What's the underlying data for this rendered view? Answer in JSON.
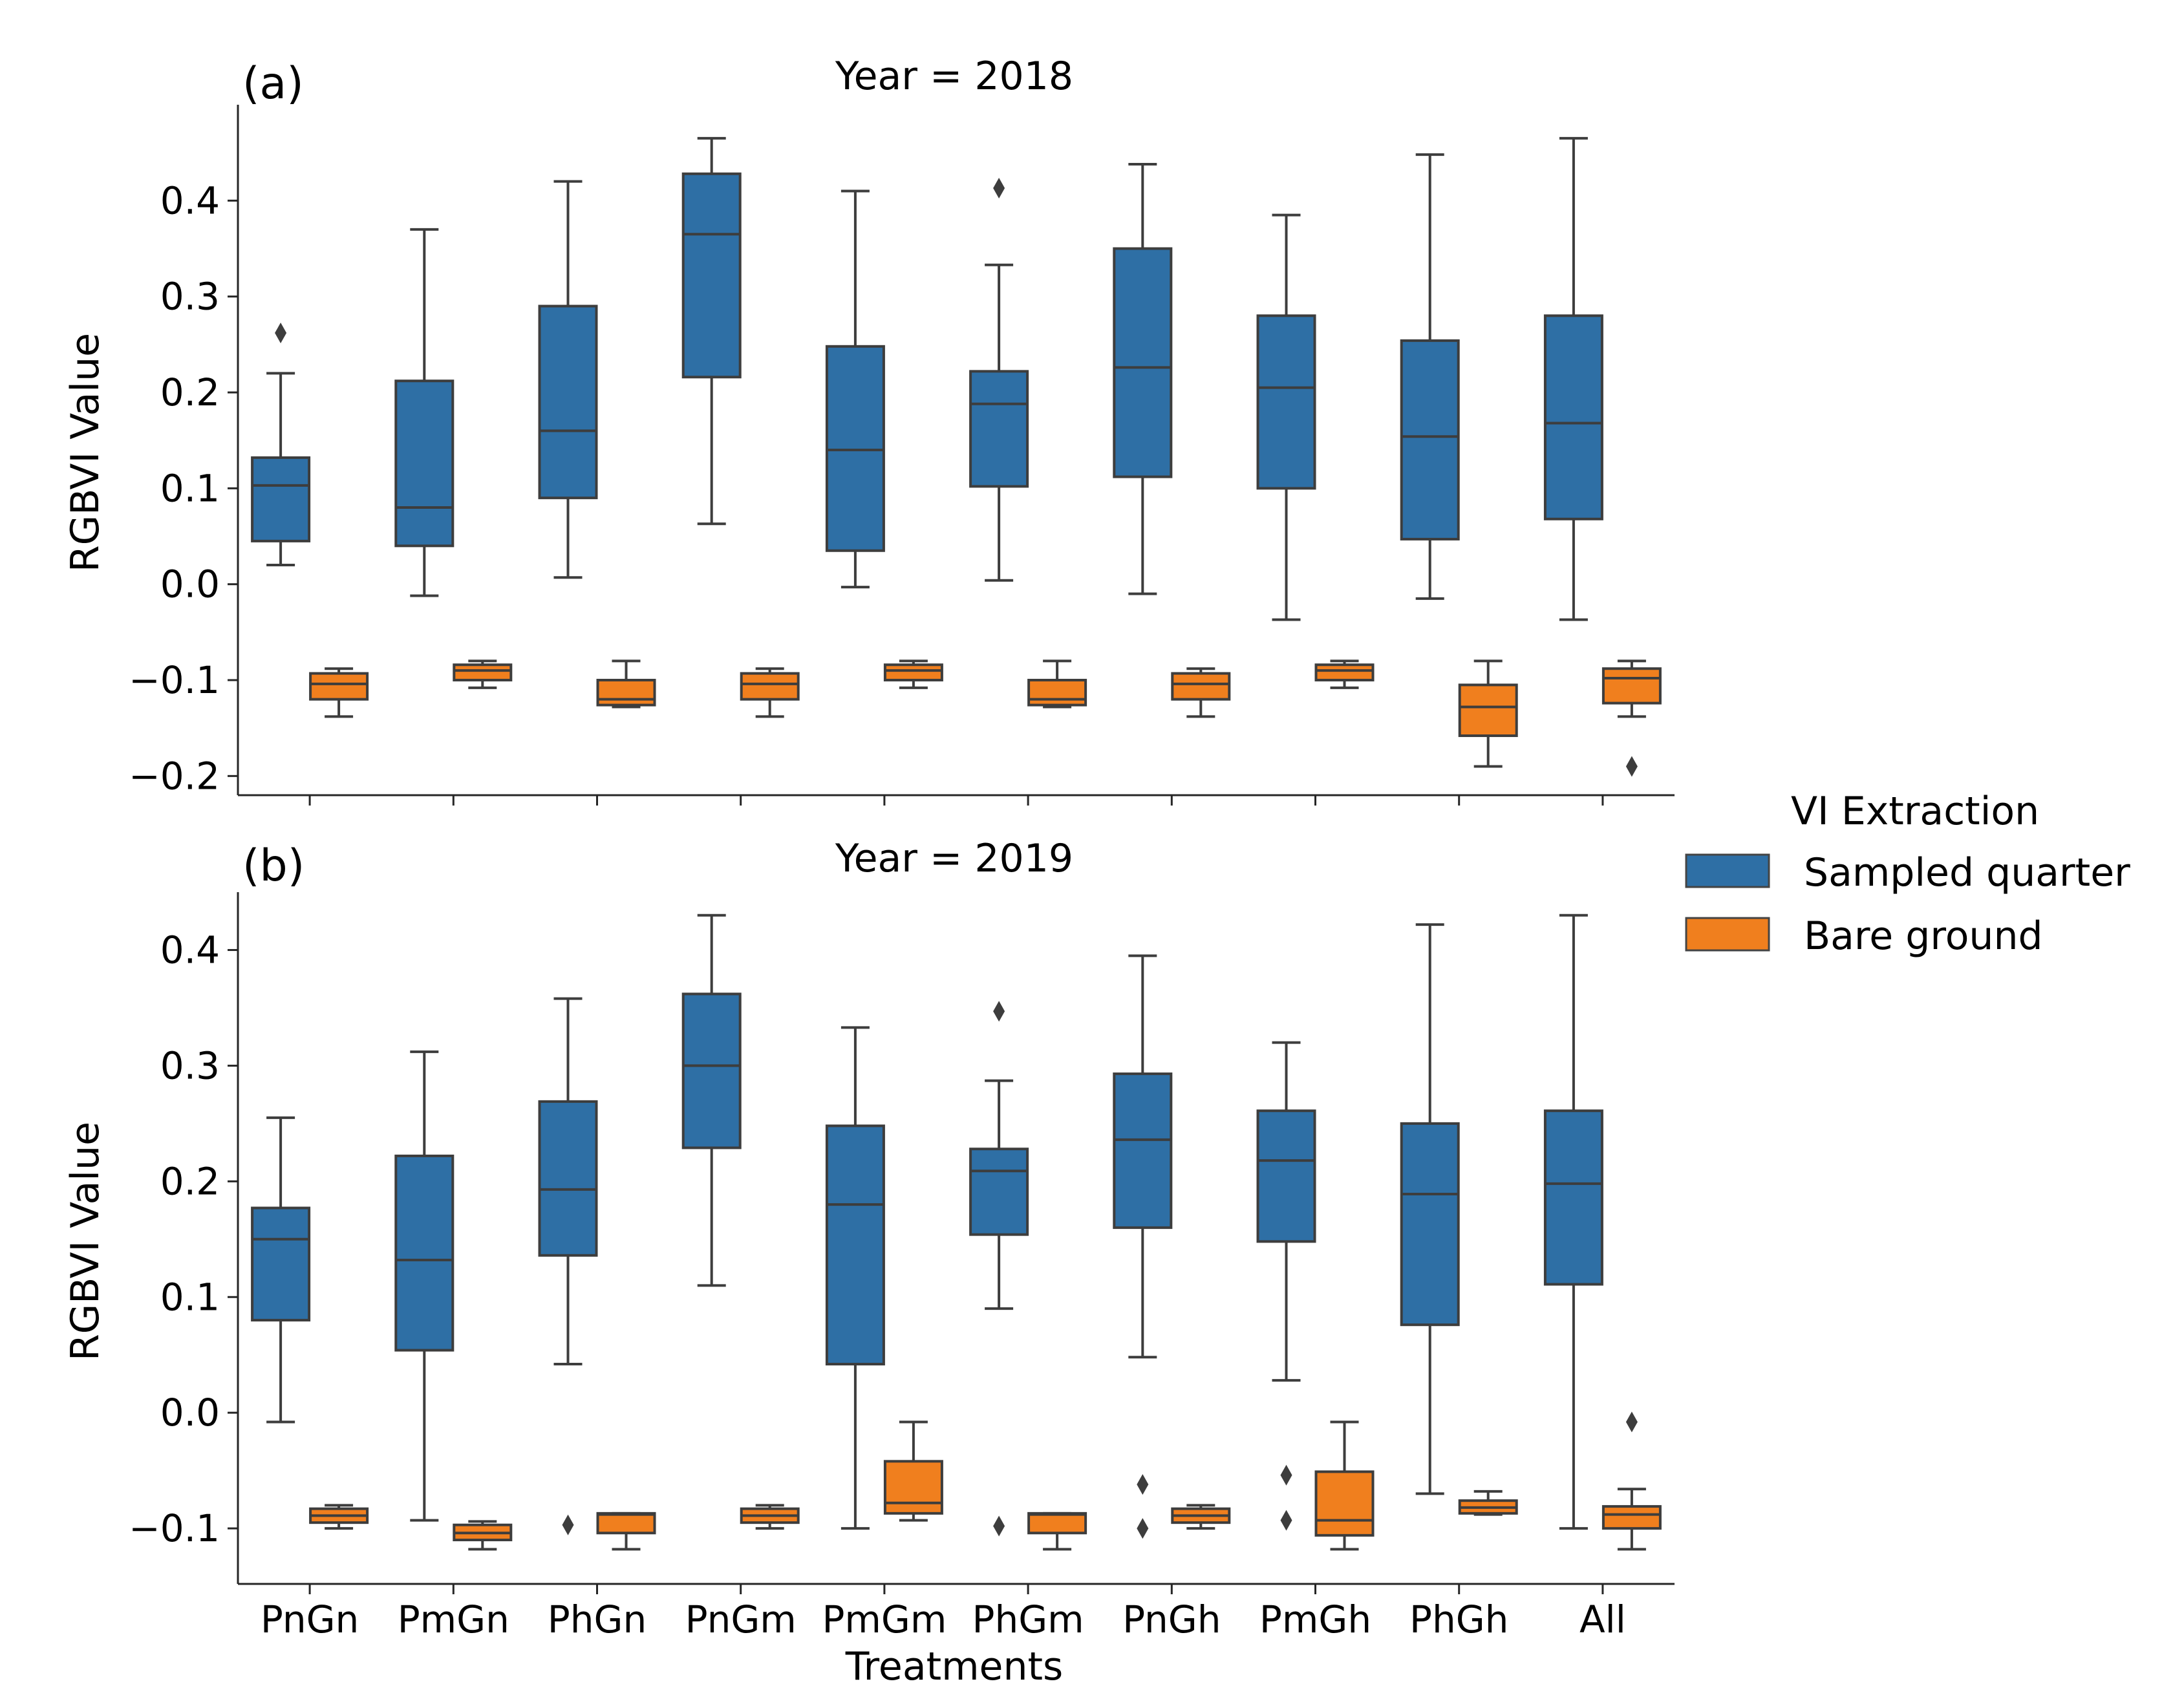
{
  "chart_data": {
    "type": "box",
    "xlabel": "Treatments",
    "categories": [
      "PnGn",
      "PmGn",
      "PhGn",
      "PnGm",
      "PmGm",
      "PhGm",
      "PnGh",
      "PmGh",
      "PhGh",
      "All"
    ],
    "legend": {
      "title": "VI Extraction",
      "placement": "right",
      "entries": [
        {
          "name": "Sampled quarter",
          "color": "#2e6fa5"
        },
        {
          "name": "Bare ground",
          "color": "#f07f1e"
        }
      ]
    },
    "panels": [
      {
        "label": "(a)",
        "title": "Year = 2018",
        "ylabel": "RGBVI Value",
        "ylim": [
          -0.22,
          0.5
        ],
        "yticks": [
          -0.2,
          -0.1,
          0.0,
          0.1,
          0.2,
          0.3,
          0.4
        ],
        "ytick_labels": [
          "−0.2",
          "−0.1",
          "0.0",
          "0.1",
          "0.2",
          "0.3",
          "0.4"
        ],
        "series": [
          {
            "name": "Sampled quarter",
            "boxes": [
              {
                "whislo": 0.02,
                "q1": 0.045,
                "med": 0.103,
                "q3": 0.132,
                "whishi": 0.22,
                "fliers": [
                  0.262
                ]
              },
              {
                "whislo": -0.012,
                "q1": 0.04,
                "med": 0.08,
                "q3": 0.212,
                "whishi": 0.37,
                "fliers": []
              },
              {
                "whislo": 0.007,
                "q1": 0.09,
                "med": 0.16,
                "q3": 0.29,
                "whishi": 0.42,
                "fliers": []
              },
              {
                "whislo": 0.063,
                "q1": 0.216,
                "med": 0.365,
                "q3": 0.428,
                "whishi": 0.465,
                "fliers": []
              },
              {
                "whislo": -0.003,
                "q1": 0.035,
                "med": 0.14,
                "q3": 0.248,
                "whishi": 0.41,
                "fliers": []
              },
              {
                "whislo": 0.004,
                "q1": 0.102,
                "med": 0.188,
                "q3": 0.222,
                "whishi": 0.333,
                "fliers": [
                  0.413
                ]
              },
              {
                "whislo": -0.01,
                "q1": 0.112,
                "med": 0.226,
                "q3": 0.35,
                "whishi": 0.438,
                "fliers": []
              },
              {
                "whislo": -0.037,
                "q1": 0.1,
                "med": 0.205,
                "q3": 0.28,
                "whishi": 0.385,
                "fliers": []
              },
              {
                "whislo": -0.015,
                "q1": 0.047,
                "med": 0.154,
                "q3": 0.254,
                "whishi": 0.448,
                "fliers": []
              },
              {
                "whislo": -0.037,
                "q1": 0.068,
                "med": 0.168,
                "q3": 0.28,
                "whishi": 0.465,
                "fliers": []
              }
            ]
          },
          {
            "name": "Bare ground",
            "boxes": [
              {
                "whislo": -0.138,
                "q1": -0.12,
                "med": -0.104,
                "q3": -0.093,
                "whishi": -0.088,
                "fliers": []
              },
              {
                "whislo": -0.108,
                "q1": -0.1,
                "med": -0.09,
                "q3": -0.084,
                "whishi": -0.08,
                "fliers": []
              },
              {
                "whislo": -0.128,
                "q1": -0.126,
                "med": -0.12,
                "q3": -0.1,
                "whishi": -0.08,
                "fliers": []
              },
              {
                "whislo": -0.138,
                "q1": -0.12,
                "med": -0.104,
                "q3": -0.093,
                "whishi": -0.088,
                "fliers": []
              },
              {
                "whislo": -0.108,
                "q1": -0.1,
                "med": -0.09,
                "q3": -0.084,
                "whishi": -0.08,
                "fliers": []
              },
              {
                "whislo": -0.128,
                "q1": -0.126,
                "med": -0.12,
                "q3": -0.1,
                "whishi": -0.08,
                "fliers": []
              },
              {
                "whislo": -0.138,
                "q1": -0.12,
                "med": -0.104,
                "q3": -0.093,
                "whishi": -0.088,
                "fliers": []
              },
              {
                "whislo": -0.108,
                "q1": -0.1,
                "med": -0.09,
                "q3": -0.084,
                "whishi": -0.08,
                "fliers": []
              },
              {
                "whislo": -0.19,
                "q1": -0.158,
                "med": -0.128,
                "q3": -0.105,
                "whishi": -0.08,
                "fliers": []
              },
              {
                "whislo": -0.138,
                "q1": -0.124,
                "med": -0.098,
                "q3": -0.088,
                "whishi": -0.08,
                "fliers": [
                  -0.19
                ]
              }
            ]
          }
        ]
      },
      {
        "label": "(b)",
        "title": "Year = 2019",
        "ylabel": "RGBVI Value",
        "ylim": [
          -0.148,
          0.45
        ],
        "yticks": [
          -0.1,
          0.0,
          0.1,
          0.2,
          0.3,
          0.4
        ],
        "ytick_labels": [
          "−0.1",
          "0.0",
          "0.1",
          "0.2",
          "0.3",
          "0.4"
        ],
        "series": [
          {
            "name": "Sampled quarter",
            "boxes": [
              {
                "whislo": -0.008,
                "q1": 0.08,
                "med": 0.15,
                "q3": 0.177,
                "whishi": 0.255,
                "fliers": []
              },
              {
                "whislo": -0.093,
                "q1": 0.054,
                "med": 0.132,
                "q3": 0.222,
                "whishi": 0.312,
                "fliers": []
              },
              {
                "whislo": 0.042,
                "q1": 0.136,
                "med": 0.193,
                "q3": 0.269,
                "whishi": 0.358,
                "fliers": [
                  -0.097
                ]
              },
              {
                "whislo": 0.11,
                "q1": 0.229,
                "med": 0.3,
                "q3": 0.362,
                "whishi": 0.43,
                "fliers": []
              },
              {
                "whislo": -0.1,
                "q1": 0.042,
                "med": 0.18,
                "q3": 0.248,
                "whishi": 0.333,
                "fliers": []
              },
              {
                "whislo": 0.09,
                "q1": 0.154,
                "med": 0.209,
                "q3": 0.228,
                "whishi": 0.287,
                "fliers": [
                  0.347,
                  -0.098
                ]
              },
              {
                "whislo": 0.048,
                "q1": 0.16,
                "med": 0.236,
                "q3": 0.293,
                "whishi": 0.395,
                "fliers": [
                  -0.062,
                  -0.1
                ]
              },
              {
                "whislo": 0.028,
                "q1": 0.148,
                "med": 0.218,
                "q3": 0.261,
                "whishi": 0.32,
                "fliers": [
                  -0.054,
                  -0.093
                ]
              },
              {
                "whislo": -0.07,
                "q1": 0.076,
                "med": 0.189,
                "q3": 0.25,
                "whishi": 0.422,
                "fliers": []
              },
              {
                "whislo": -0.1,
                "q1": 0.111,
                "med": 0.198,
                "q3": 0.261,
                "whishi": 0.43,
                "fliers": []
              }
            ]
          },
          {
            "name": "Bare ground",
            "boxes": [
              {
                "whislo": -0.1,
                "q1": -0.095,
                "med": -0.089,
                "q3": -0.083,
                "whishi": -0.08,
                "fliers": []
              },
              {
                "whislo": -0.118,
                "q1": -0.11,
                "med": -0.104,
                "q3": -0.097,
                "whishi": -0.094,
                "fliers": []
              },
              {
                "whislo": -0.118,
                "q1": -0.104,
                "med": -0.088,
                "q3": -0.087,
                "whishi": -0.087,
                "fliers": []
              },
              {
                "whislo": -0.1,
                "q1": -0.095,
                "med": -0.089,
                "q3": -0.083,
                "whishi": -0.08,
                "fliers": []
              },
              {
                "whislo": -0.093,
                "q1": -0.087,
                "med": -0.078,
                "q3": -0.042,
                "whishi": -0.008,
                "fliers": []
              },
              {
                "whislo": -0.118,
                "q1": -0.104,
                "med": -0.088,
                "q3": -0.087,
                "whishi": -0.087,
                "fliers": []
              },
              {
                "whislo": -0.1,
                "q1": -0.095,
                "med": -0.089,
                "q3": -0.083,
                "whishi": -0.08,
                "fliers": []
              },
              {
                "whislo": -0.118,
                "q1": -0.106,
                "med": -0.093,
                "q3": -0.051,
                "whishi": -0.008,
                "fliers": []
              },
              {
                "whislo": -0.088,
                "q1": -0.087,
                "med": -0.082,
                "q3": -0.076,
                "whishi": -0.068,
                "fliers": []
              },
              {
                "whislo": -0.118,
                "q1": -0.1,
                "med": -0.088,
                "q3": -0.081,
                "whishi": -0.066,
                "fliers": [
                  -0.008
                ]
              }
            ]
          }
        ]
      }
    ]
  }
}
